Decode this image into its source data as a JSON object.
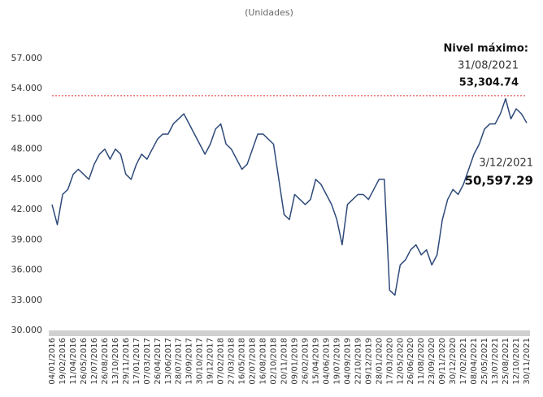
{
  "chart_data": {
    "type": "line",
    "subtitle": "(Unidades)",
    "categories": [
      "04/01/2016",
      null,
      "19/02/2016",
      null,
      "11/04/2016",
      null,
      "26/05/2016",
      null,
      "12/07/2016",
      null,
      "26/08/2016",
      null,
      "13/10/2016",
      null,
      "29/11/2016",
      null,
      "17/01/2017",
      null,
      "07/03/2017",
      null,
      "26/04/2017",
      null,
      "13/06/2017",
      null,
      "28/07/2017",
      null,
      "13/09/2017",
      null,
      "30/10/2017",
      null,
      "19/12/2017",
      null,
      "07/02/2018",
      null,
      "27/03/2018",
      null,
      "16/05/2018",
      null,
      "02/07/2018",
      null,
      "16/08/2018",
      null,
      "02/10/2018",
      null,
      "20/11/2018",
      null,
      "09/01/2019",
      null,
      "26/02/2019",
      null,
      "15/04/2019",
      null,
      "04/06/2019",
      null,
      "19/07/2019",
      null,
      "04/09/2019",
      null,
      "22/10/2019",
      null,
      "09/12/2019",
      null,
      "28/01/2020",
      null,
      "17/03/2020",
      null,
      "12/05/2020",
      null,
      "26/06/2020",
      null,
      "11/08/2020",
      null,
      "23/09/2020",
      null,
      "09/11/2020",
      null,
      "30/12/2020",
      null,
      "17/02/2021",
      null,
      "08/04/2021",
      null,
      "25/05/2021",
      null,
      "13/07/2021",
      null,
      "25/08/2021",
      null,
      "12/10/2021",
      null,
      "30/11/2021"
    ],
    "values": [
      42500,
      40500,
      43500,
      44000,
      45500,
      46000,
      45500,
      45000,
      46500,
      47500,
      48000,
      47000,
      48000,
      47500,
      45500,
      45000,
      46500,
      47500,
      47000,
      48000,
      49000,
      49500,
      49500,
      50500,
      51000,
      51500,
      50500,
      49500,
      48500,
      47500,
      48500,
      50000,
      50500,
      48500,
      48000,
      47000,
      46000,
      46500,
      48000,
      49500,
      49500,
      49000,
      48500,
      45000,
      41500,
      41000,
      43500,
      43000,
      42500,
      43000,
      45000,
      44500,
      43500,
      42500,
      41000,
      38500,
      42500,
      43000,
      43500,
      43500,
      43000,
      44000,
      45000,
      45000,
      34000,
      33500,
      36500,
      37000,
      38000,
      38500,
      37500,
      38000,
      36500,
      37500,
      41000,
      43000,
      44000,
      43500,
      44500,
      46000,
      47500,
      48500,
      50000,
      50500,
      50500,
      51500,
      53000,
      51000,
      52000,
      51500,
      50600
    ],
    "color": "#2e4a7a",
    "ylim": [
      30000,
      57000
    ],
    "yticks": [
      {
        "value": 30000,
        "label": "30.000"
      },
      {
        "value": 33000,
        "label": "33.000"
      },
      {
        "value": 36000,
        "label": "36.000"
      },
      {
        "value": 39000,
        "label": "39.000"
      },
      {
        "value": 42000,
        "label": "42.000"
      },
      {
        "value": 45000,
        "label": "45.000"
      },
      {
        "value": 48000,
        "label": "48.000"
      },
      {
        "value": 51000,
        "label": "51.000"
      },
      {
        "value": 54000,
        "label": "54.000"
      },
      {
        "value": 57000,
        "label": "57.000"
      }
    ],
    "max_annotation": {
      "title": "Nivel máximo:",
      "date": "31/08/2021",
      "value": 53304.74,
      "label": "53,304.74",
      "color": "#e03030"
    },
    "last_annotation": {
      "date": "3/12/2021",
      "value": 50597.29,
      "label": "50,597.29"
    }
  }
}
